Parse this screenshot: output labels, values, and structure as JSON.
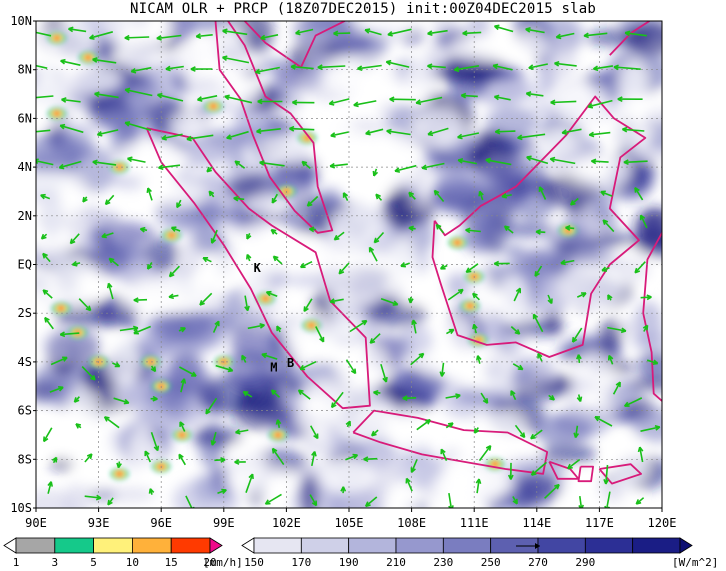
{
  "title": "NICAM OLR + PRCP (18Z07DEC2015) init:00Z04DEC2015 slab",
  "map": {
    "lat_labels": [
      "10N",
      "8N",
      "6N",
      "4N",
      "2N",
      "EQ",
      "2S",
      "4S",
      "6S",
      "8S",
      "10S"
    ],
    "lon_labels": [
      "90E",
      "93E",
      "96E",
      "99E",
      "102E",
      "105E",
      "108E",
      "111E",
      "114E",
      "117E",
      "120E"
    ],
    "place_labels": [
      {
        "text": "K",
        "lon": 100.6,
        "lat": -0.3
      },
      {
        "text": "M",
        "lon": 101.4,
        "lat": -4.4
      },
      {
        "text": "B",
        "lon": 102.2,
        "lat": -4.2
      }
    ]
  },
  "precip_legend": {
    "ticks": [
      "1",
      "3",
      "5",
      "10",
      "15",
      "20"
    ],
    "unit": "[mm/h]",
    "colors": [
      "#ffffff",
      "#a6a6a6",
      "#15c98a",
      "#fff17a",
      "#ffb13a",
      "#ff3a00",
      "#ef0a8a"
    ]
  },
  "olr_legend": {
    "ticks": [
      "150",
      "170",
      "190",
      "210",
      "230",
      "250",
      "270",
      "290"
    ],
    "unit": "[W/m^2]",
    "colors": [
      "#ffffff",
      "#e6e6f2",
      "#cfd0e8",
      "#b3b5dc",
      "#9698ce",
      "#7a7dc0",
      "#5d60b0",
      "#4246a3",
      "#2c2f95",
      "#1a1d85",
      "#0d0f72"
    ]
  },
  "colors": {
    "wind_arrow": "#19c019",
    "coastline": "#d81b7a",
    "grid": "#888888"
  }
}
